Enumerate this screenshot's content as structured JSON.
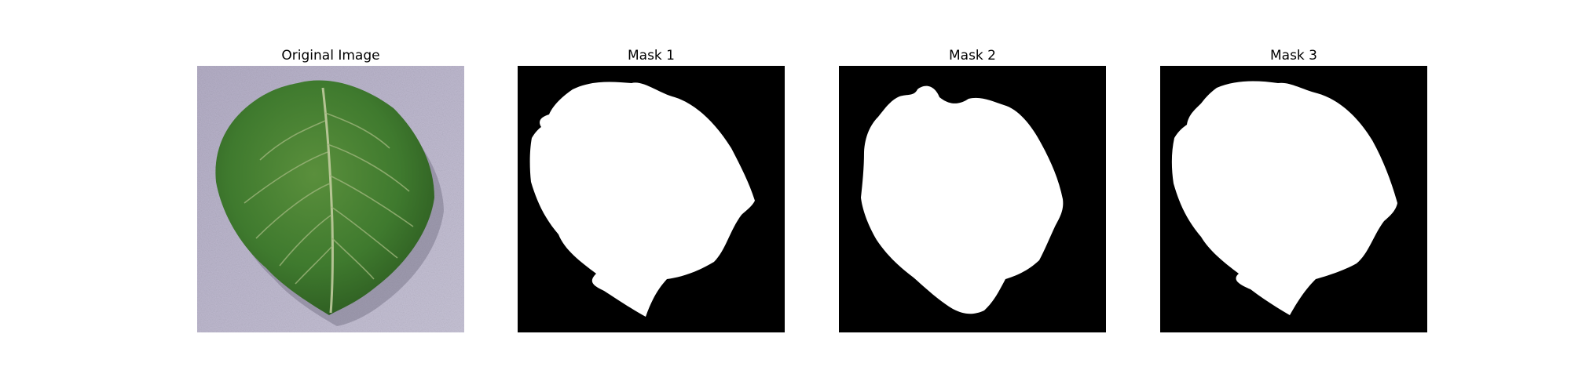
{
  "panels": [
    {
      "id": "original",
      "title": "Original Image"
    },
    {
      "id": "mask1",
      "title": "Mask 1"
    },
    {
      "id": "mask2",
      "title": "Mask 2"
    },
    {
      "id": "mask3",
      "title": "Mask 3"
    }
  ],
  "colors": {
    "background": "#ffffff",
    "mask_background": "#000000",
    "mask_foreground": "#ffffff",
    "leaf_green": "#3f7a2e",
    "surface_lavender": "#b7b2c8"
  }
}
